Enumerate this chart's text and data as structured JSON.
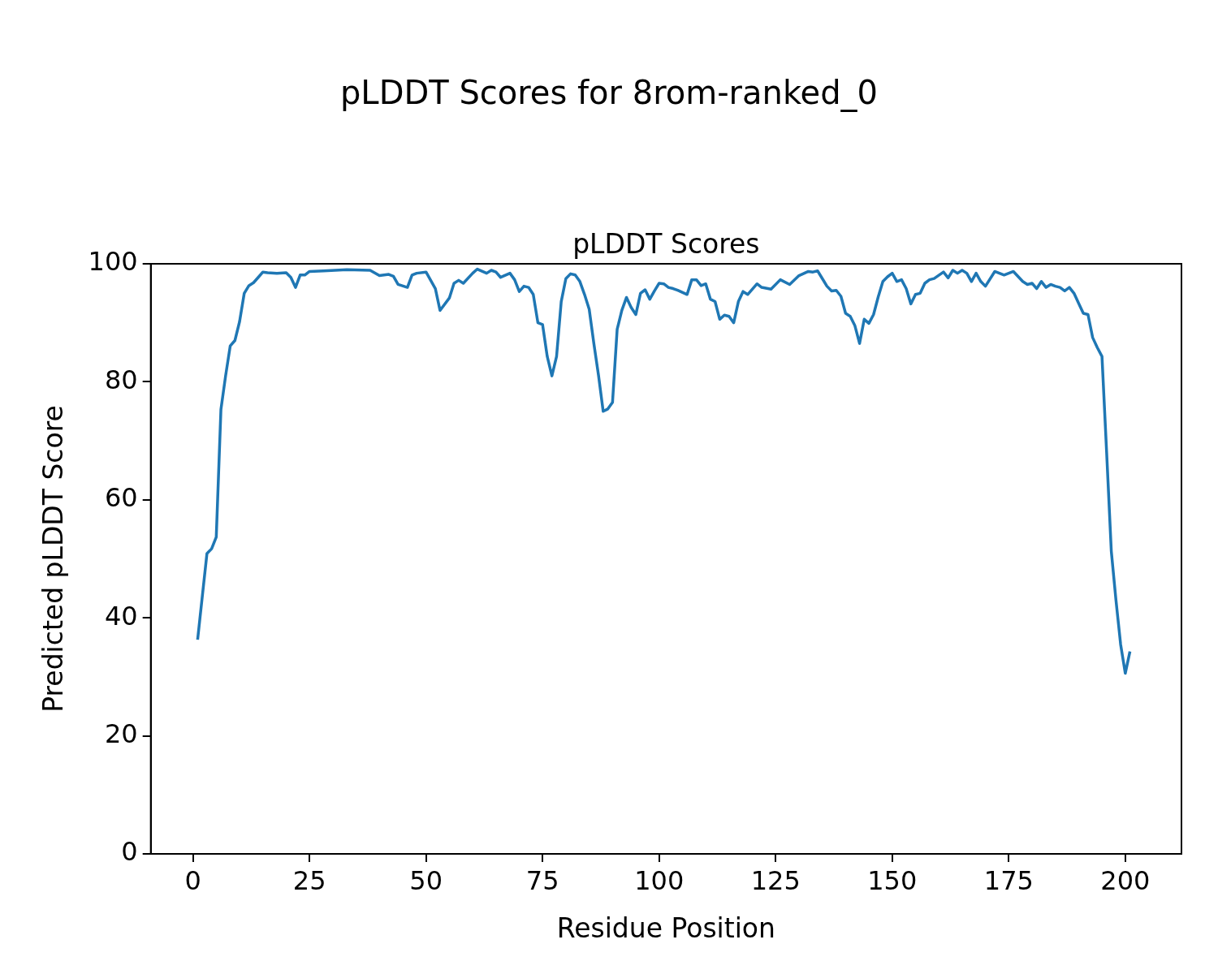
{
  "chart_data": {
    "type": "line",
    "title": "pLDDT Scores for 8rom-ranked_0",
    "subtitle": "pLDDT Scores",
    "xlabel": "Residue Position",
    "ylabel": "Predicted pLDDT Score",
    "x": [
      1,
      3,
      4,
      5,
      6,
      7,
      8,
      9,
      10,
      11,
      12,
      13,
      14,
      15,
      16,
      18,
      20,
      21,
      22,
      23,
      24,
      25,
      28,
      33,
      38,
      40,
      42,
      43,
      44,
      46,
      47,
      48,
      50,
      52,
      53,
      55,
      56,
      57,
      58,
      60,
      61,
      63,
      64,
      65,
      66,
      68,
      69,
      70,
      71,
      72,
      73,
      74,
      75,
      76,
      77,
      78,
      79,
      80,
      81,
      82,
      83,
      84,
      85,
      86,
      87,
      88,
      89,
      90,
      91,
      92,
      93,
      94,
      95,
      96,
      97,
      98,
      99,
      100,
      101,
      102,
      103,
      104,
      106,
      107,
      108,
      109,
      110,
      111,
      112,
      113,
      114,
      115,
      116,
      117,
      118,
      119,
      121,
      122,
      124,
      126,
      128,
      130,
      132,
      133,
      134,
      136,
      137,
      138,
      139,
      140,
      141,
      142,
      143,
      144,
      145,
      146,
      147,
      148,
      149,
      150,
      151,
      152,
      153,
      154,
      155,
      156,
      157,
      158,
      159,
      161,
      162,
      163,
      164,
      165,
      166,
      167,
      168,
      169,
      170,
      172,
      174,
      176,
      178,
      179,
      180,
      181,
      182,
      183,
      184,
      185,
      186,
      187,
      188,
      189,
      190,
      191,
      192,
      193,
      194,
      195,
      196,
      197,
      198,
      199,
      200,
      201
    ],
    "series": [
      {
        "color": "#1f77b4",
        "values": [
          36.3,
          50.9,
          51.7,
          53.7,
          75.3,
          81,
          86.1,
          87,
          90.2,
          95,
          96.3,
          96.8,
          97.7,
          98.6,
          98.5,
          98.4,
          98.5,
          97.7,
          96,
          98.1,
          98.1,
          98.7,
          98.8,
          99,
          98.9,
          98,
          98.2,
          97.9,
          96.5,
          96,
          98.1,
          98.4,
          98.6,
          95.8,
          92.1,
          94.2,
          96.7,
          97.2,
          96.7,
          98.4,
          99.1,
          98.4,
          98.9,
          98.6,
          97.7,
          98.4,
          97.3,
          95.3,
          96.2,
          96,
          94.8,
          90,
          89.7,
          84.3,
          81,
          84.3,
          93.6,
          97.5,
          98.3,
          98.1,
          97,
          94.8,
          92.3,
          86.5,
          81.1,
          75,
          75.4,
          76.5,
          88.9,
          92.1,
          94.3,
          92.6,
          91.4,
          95,
          95.6,
          94,
          95.4,
          96.7,
          96.6,
          96,
          95.8,
          95.5,
          94.8,
          97.3,
          97.3,
          96.3,
          96.6,
          94,
          93.6,
          90.6,
          91.3,
          91.1,
          90,
          93.6,
          95.3,
          94.8,
          96.6,
          96,
          95.7,
          97.3,
          96.5,
          98,
          98.7,
          98.6,
          98.8,
          96.2,
          95.4,
          95.5,
          94.5,
          91.6,
          91.1,
          89.5,
          86.5,
          90.6,
          89.9,
          91.4,
          94.4,
          97,
          97.8,
          98.4,
          97,
          97.3,
          95.8,
          93.2,
          94.8,
          95,
          96.7,
          97.3,
          97.5,
          98.6,
          97.6,
          98.9,
          98.4,
          98.9,
          98.4,
          97,
          98.4,
          97,
          96.2,
          98.7,
          98.1,
          98.7,
          97,
          96.5,
          96.7,
          95.8,
          97,
          96,
          96.5,
          96.2,
          96,
          95.4,
          96,
          95,
          93.3,
          91.6,
          91.4,
          87.5,
          85.8,
          84.3,
          68,
          51.3,
          43,
          35.5,
          30.6,
          34.3
        ]
      }
    ],
    "xlim": [
      -9.05,
      212.05
    ],
    "ylim": [
      0,
      100
    ],
    "xticks": [
      0,
      25,
      50,
      75,
      100,
      125,
      150,
      175,
      200
    ],
    "yticks": [
      0,
      20,
      40,
      60,
      80,
      100
    ],
    "grid": false,
    "legend": false
  }
}
